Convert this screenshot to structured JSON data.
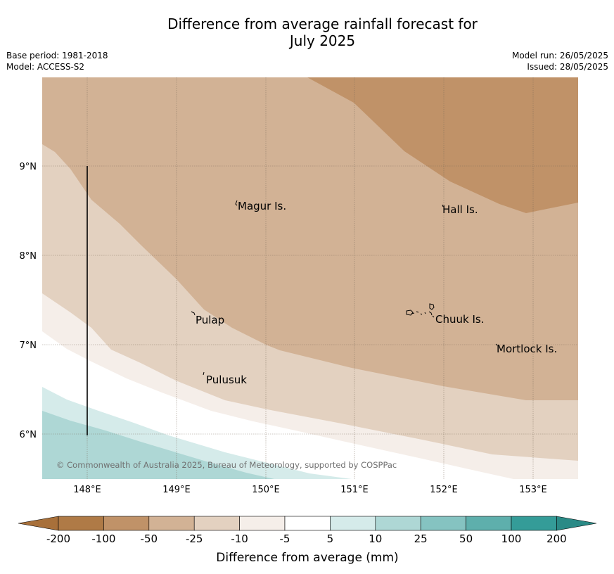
{
  "title": {
    "line1": "Difference from average rainfall forecast for",
    "line2": "July 2025"
  },
  "meta": {
    "base_period": "Base period: 1981-2018",
    "model": "Model: ACCESS-S2",
    "model_run": "Model run: 26/05/2025",
    "issued": "Issued: 28/05/2025"
  },
  "map": {
    "x_ticks": [
      "148°E",
      "149°E",
      "150°E",
      "151°E",
      "152°E",
      "153°E"
    ],
    "y_ticks": [
      "9°N",
      "8°N",
      "7°N",
      "6°N"
    ],
    "places": [
      {
        "name": "Magur Is."
      },
      {
        "name": "Hall Is."
      },
      {
        "name": "Pulap"
      },
      {
        "name": "Chuuk Is."
      },
      {
        "name": "Mortlock Is."
      },
      {
        "name": "Pulusuk"
      }
    ],
    "copyright": "© Commonwealth of Australia 2025, Bureau of Meteorology, supported by COSPPac",
    "colors": {
      "lt_-50": "#c09268",
      "-50_-25": "#d2b295",
      "-25_-10": "#e3d1c0",
      "-10_-5": "#f5eee9",
      "-5_5": "#ffffff",
      "5_10": "#d5ebea",
      "10_25": "#aed7d5",
      "grid": "#7a6a5a"
    }
  },
  "colorbar": {
    "label": "Difference from average (mm)",
    "ticks": [
      "-200",
      "-100",
      "-50",
      "-25",
      "-10",
      "-5",
      "5",
      "10",
      "25",
      "50",
      "100",
      "200"
    ],
    "colors": [
      "#a8703a",
      "#af7a46",
      "#c09268",
      "#d2b295",
      "#e3d1c0",
      "#f5eee9",
      "#ffffff",
      "#d5ebea",
      "#aed7d5",
      "#85c3c1",
      "#5eafac",
      "#349c98",
      "#2a8a86"
    ]
  }
}
